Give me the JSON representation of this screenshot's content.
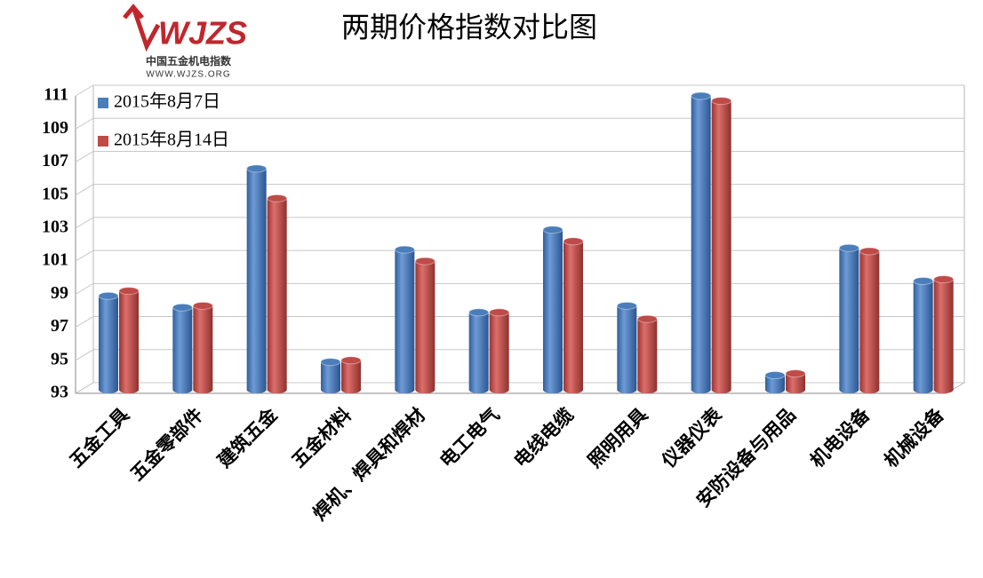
{
  "chart_data": {
    "type": "bar3d",
    "title": "两期价格指数对比图",
    "logo": {
      "name": "WJZS",
      "subtitle": "中国五金机电指数",
      "url": "WWW.WJZS.ORG"
    },
    "categories": [
      "五金工具",
      "五金零部件",
      "建筑五金",
      "五金材料",
      "焊机、焊具和焊材",
      "电工电气",
      "电线电缆",
      "照明用具",
      "仪器仪表",
      "安防设备与用品",
      "机电设备",
      "机械设备"
    ],
    "series": [
      {
        "name": "2015年8月7日",
        "color": "#4a7ebb",
        "values": [
          98.9,
          98.2,
          106.6,
          94.9,
          101.7,
          97.9,
          102.9,
          98.3,
          111.0,
          94.1,
          101.8,
          99.8
        ]
      },
      {
        "name": "2015年8月14日",
        "color": "#be4b48",
        "values": [
          99.2,
          98.3,
          104.8,
          95.0,
          101.0,
          97.9,
          102.2,
          97.5,
          110.7,
          94.2,
          101.6,
          99.9
        ]
      }
    ],
    "ylim": [
      93,
      111
    ],
    "yticks": [
      93,
      95,
      97,
      99,
      101,
      103,
      105,
      107,
      109,
      111
    ],
    "grid": true,
    "legend": "top-left"
  }
}
